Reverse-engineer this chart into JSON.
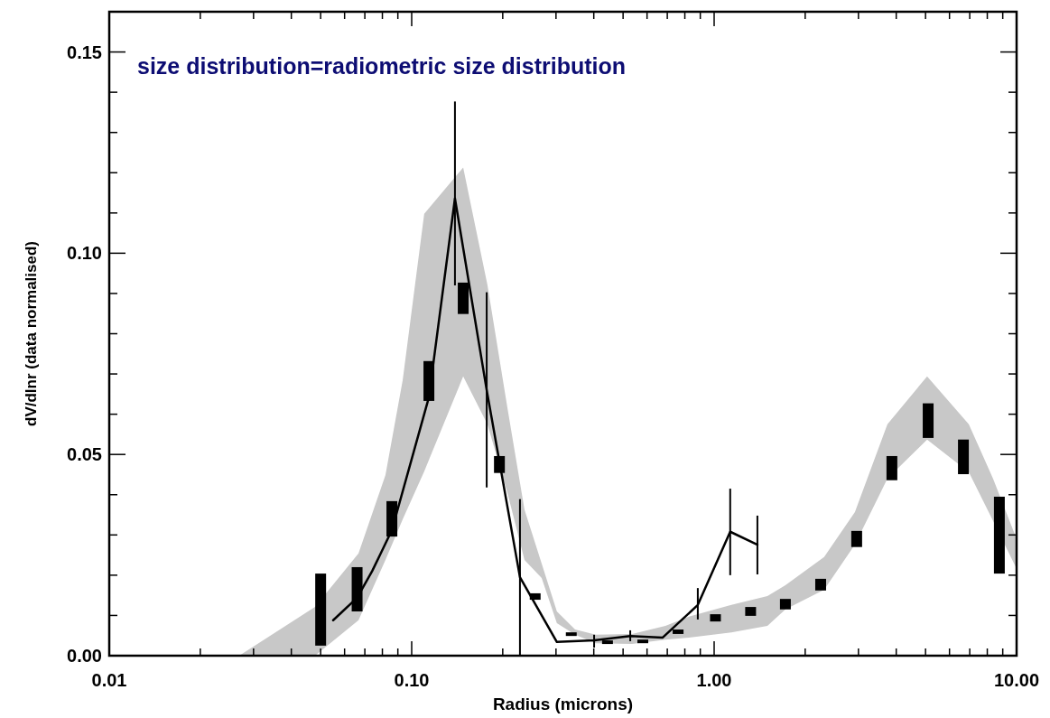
{
  "chart_data": {
    "type": "line",
    "title": "size distribution=radiometric size distribution",
    "xlabel": "Radius (microns)",
    "ylabel": "dV/dlnr (data normalised)",
    "log": "x",
    "grid": false,
    "xlim": [
      0.01,
      10
    ],
    "ylim": [
      0,
      0.16
    ],
    "xticks": [
      {
        "value": 0.01,
        "label": "0.01"
      },
      {
        "value": 0.02,
        "label": null
      },
      {
        "value": 0.03,
        "label": null
      },
      {
        "value": 0.04,
        "label": null
      },
      {
        "value": 0.05,
        "label": null
      },
      {
        "value": 0.06,
        "label": null
      },
      {
        "value": 0.07,
        "label": null
      },
      {
        "value": 0.08,
        "label": null
      },
      {
        "value": 0.09,
        "label": null
      },
      {
        "value": 0.1,
        "label": "0.10"
      },
      {
        "value": 0.2,
        "label": null
      },
      {
        "value": 0.3,
        "label": null
      },
      {
        "value": 0.4,
        "label": null
      },
      {
        "value": 0.5,
        "label": null
      },
      {
        "value": 0.6,
        "label": null
      },
      {
        "value": 0.7,
        "label": null
      },
      {
        "value": 0.8,
        "label": null
      },
      {
        "value": 0.9,
        "label": null
      },
      {
        "value": 1,
        "label": "1.00"
      },
      {
        "value": 2,
        "label": null
      },
      {
        "value": 3,
        "label": null
      },
      {
        "value": 4,
        "label": null
      },
      {
        "value": 5,
        "label": null
      },
      {
        "value": 6,
        "label": null
      },
      {
        "value": 7,
        "label": null
      },
      {
        "value": 8,
        "label": null
      },
      {
        "value": 9,
        "label": null
      },
      {
        "value": 10,
        "label": "10.00"
      }
    ],
    "yticks": [
      {
        "value": 0,
        "label": "0.00"
      },
      {
        "value": 0.01,
        "label": null
      },
      {
        "value": 0.02,
        "label": null
      },
      {
        "value": 0.03,
        "label": null
      },
      {
        "value": 0.04,
        "label": null
      },
      {
        "value": 0.05,
        "label": "0.05"
      },
      {
        "value": 0.06,
        "label": null
      },
      {
        "value": 0.07,
        "label": null
      },
      {
        "value": 0.08,
        "label": null
      },
      {
        "value": 0.09,
        "label": null
      },
      {
        "value": 0.1,
        "label": "0.10"
      },
      {
        "value": 0.11,
        "label": null
      },
      {
        "value": 0.12,
        "label": null
      },
      {
        "value": 0.13,
        "label": null
      },
      {
        "value": 0.14,
        "label": null
      },
      {
        "value": 0.15,
        "label": "0.15"
      }
    ],
    "series": [
      {
        "type": "area",
        "color": "#c8c8c8",
        "x": [
          0.0269,
          0.0479,
          0.0667,
          0.0819,
          0.0934,
          0.11,
          0.148,
          0.178,
          0.207,
          0.236,
          0.269,
          0.302,
          0.347,
          0.406,
          0.535,
          0.69,
          0.825,
          1.14,
          1.5,
          1.72,
          2.31,
          2.92,
          3.74,
          5.06,
          6.95,
          8.36,
          10.0
        ],
        "values": [
          null,
          null,
          null,
          null,
          null,
          null,
          null,
          null,
          null,
          null,
          null,
          null,
          null,
          null,
          null,
          null,
          null,
          null,
          null,
          null,
          null,
          null,
          null,
          null,
          null,
          null,
          null
        ],
        "upper": [
          0,
          0.0121,
          0.0254,
          0.0449,
          0.0685,
          0.1098,
          0.1213,
          0.0921,
          0.0618,
          0.0363,
          0.0229,
          0.011,
          0.0065,
          0.0052,
          0.0054,
          0.0074,
          0.0097,
          0.0126,
          0.0148,
          0.0175,
          0.0245,
          0.0357,
          0.0575,
          0.0694,
          0.0575,
          0.044,
          0.029
        ],
        "lower": [
          0,
          0,
          0.0088,
          0.0238,
          0.0339,
          0.0458,
          0.0694,
          0.0575,
          0.0406,
          0.0238,
          0.0193,
          0.0081,
          0.0052,
          0.0031,
          0.0029,
          0.004,
          0.0045,
          0.0058,
          0.0074,
          0.0115,
          0.0164,
          0.0276,
          0.044,
          0.0537,
          0.0456,
          0.0335,
          0.0216
        ]
      },
      {
        "type": "bar",
        "color": "#000000",
        "x": [
          0.05,
          0.066,
          0.086,
          0.114,
          0.148,
          0.195,
          0.256,
          0.337,
          0.444,
          0.581,
          0.76,
          1.01,
          1.32,
          1.72,
          2.25,
          2.96,
          3.87,
          5.1,
          6.67,
          8.77
        ],
        "base": [
          0.0025,
          0.011,
          0.0296,
          0.0633,
          0.0849,
          0.0454,
          0.0139,
          0.0049,
          0.0029,
          0.0031,
          0.0054,
          0.0085,
          0.0099,
          0.0115,
          0.0162,
          0.027,
          0.0436,
          0.0541,
          0.0451,
          0.0204
        ],
        "values": [
          0.0179,
          0.011,
          0.0088,
          0.0099,
          0.0078,
          0.0042,
          0.0016,
          0.0009,
          0.0009,
          0.0009,
          0.0011,
          0.0018,
          0.0022,
          0.0026,
          0.0029,
          0.004,
          0.006,
          0.0086,
          0.0086,
          0.0191
        ]
      },
      {
        "color": "#000000",
        "marker": "none",
        "line_style": "solid",
        "x": [
          0.055,
          0.066,
          0.074,
          0.079,
          0.086,
          0.114,
          0.139,
          0.177,
          0.228,
          0.302,
          0.401,
          0.528,
          0.676,
          0.883,
          1.13,
          1.39
        ],
        "values": [
          0.0088,
          0.0144,
          0.021,
          0.0254,
          0.0312,
          0.0642,
          0.1136,
          0.066,
          0.0195,
          0.0034,
          0.0038,
          0.0049,
          0.0045,
          0.0126,
          0.0308,
          0.0276
        ],
        "errors": [
          null,
          null,
          null,
          null,
          null,
          null,
          [
            0.092,
            0.1377
          ],
          [
            0.0418,
            0.0903
          ],
          [
            0,
            0.0389
          ],
          null,
          [
            0.002,
            0.0052
          ],
          [
            0.0036,
            0.0063
          ],
          null,
          [
            0.009,
            0.0168
          ],
          [
            0.02,
            0.0415
          ],
          [
            0.0202,
            0.0348
          ]
        ]
      }
    ]
  }
}
